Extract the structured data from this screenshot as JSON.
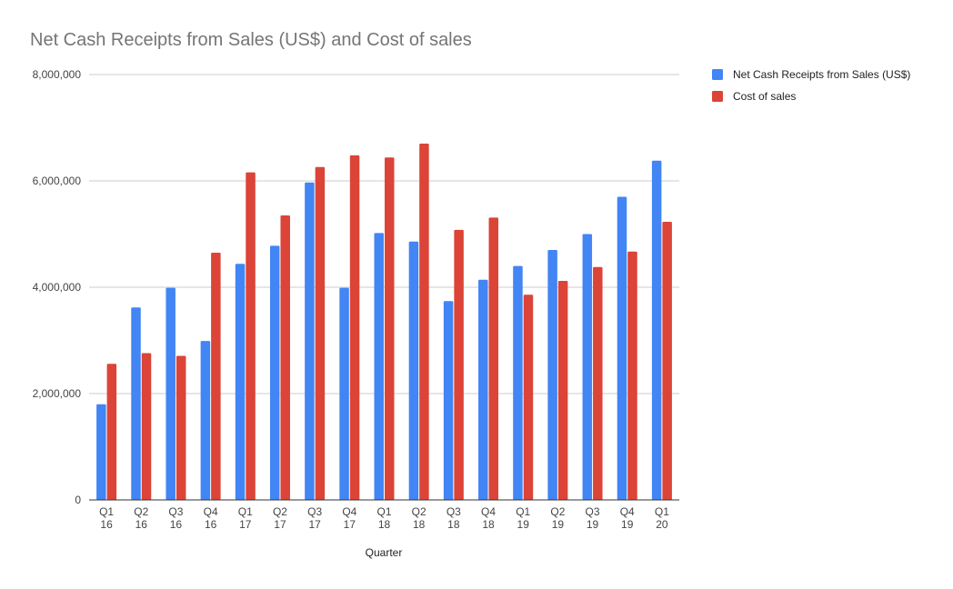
{
  "chart_data": {
    "type": "bar",
    "title": "Net Cash Receipts from Sales (US$) and Cost of sales",
    "xlabel": "Quarter",
    "ylabel": "",
    "ylim": [
      0,
      8000000
    ],
    "yticks": [
      0,
      2000000,
      4000000,
      6000000,
      8000000
    ],
    "ytick_labels": [
      "0",
      "2,000,000",
      "4,000,000",
      "6,000,000",
      "8,000,000"
    ],
    "grid": true,
    "legend_position": "right",
    "categories": [
      [
        "Q1",
        "16"
      ],
      [
        "Q2",
        "16"
      ],
      [
        "Q3",
        "16"
      ],
      [
        "Q4",
        "16"
      ],
      [
        "Q1",
        "17"
      ],
      [
        "Q2",
        "17"
      ],
      [
        "Q3",
        "17"
      ],
      [
        "Q4",
        "17"
      ],
      [
        "Q1",
        "18"
      ],
      [
        "Q2",
        "18"
      ],
      [
        "Q3",
        "18"
      ],
      [
        "Q4",
        "18"
      ],
      [
        "Q1",
        "19"
      ],
      [
        "Q2",
        "19"
      ],
      [
        "Q3",
        "19"
      ],
      [
        "Q4",
        "19"
      ],
      [
        "Q1",
        "20"
      ]
    ],
    "series": [
      {
        "name": "Net Cash Receipts from Sales (US$)",
        "color": "#4285f4",
        "values": [
          1800000,
          3620000,
          3990000,
          2990000,
          4440000,
          4780000,
          5970000,
          3990000,
          5020000,
          4860000,
          3740000,
          4140000,
          4400000,
          4700000,
          5000000,
          5700000,
          6380000
        ]
      },
      {
        "name": "Cost of sales",
        "color": "#db4437",
        "values": [
          2560000,
          2760000,
          2710000,
          4650000,
          6160000,
          5350000,
          6260000,
          6480000,
          6440000,
          6700000,
          5080000,
          5310000,
          3860000,
          4120000,
          4380000,
          4670000,
          5230000
        ]
      }
    ]
  }
}
